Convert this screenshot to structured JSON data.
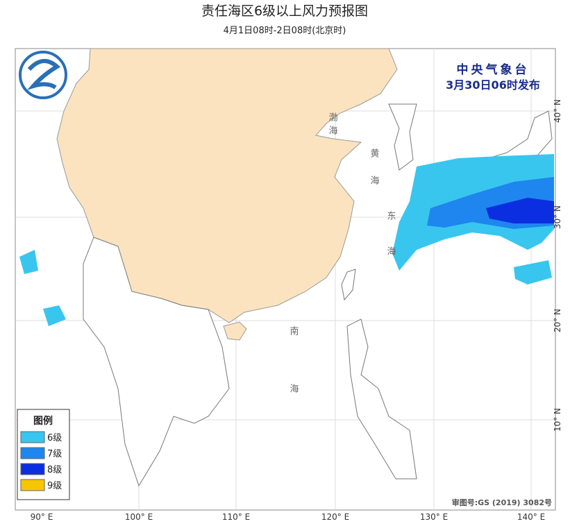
{
  "header": {
    "title": "责任海区6级以上风力预报图",
    "subtitle": "4月1日08时-2日08时(北京时)"
  },
  "issuer": {
    "name": "中央气象台",
    "time": "3月30日06时发布"
  },
  "legend": {
    "title": "图例",
    "items": [
      {
        "label": "6级",
        "color": "#38c6ef"
      },
      {
        "label": "7级",
        "color": "#1e86ee"
      },
      {
        "label": "8级",
        "color": "#0b2ee0"
      },
      {
        "label": "9级",
        "color": "#f6c600"
      }
    ]
  },
  "lon_labels": [
    "90° E",
    "100° E",
    "110° E",
    "120° E",
    "130° E",
    "140° E"
  ],
  "lat_labels": [
    "10° N",
    "20° N",
    "30° N",
    "40° N"
  ],
  "seas": [
    "渤海",
    "黄海",
    "东海",
    "南海"
  ],
  "approval": "审图号:GS (2019) 3082号"
}
